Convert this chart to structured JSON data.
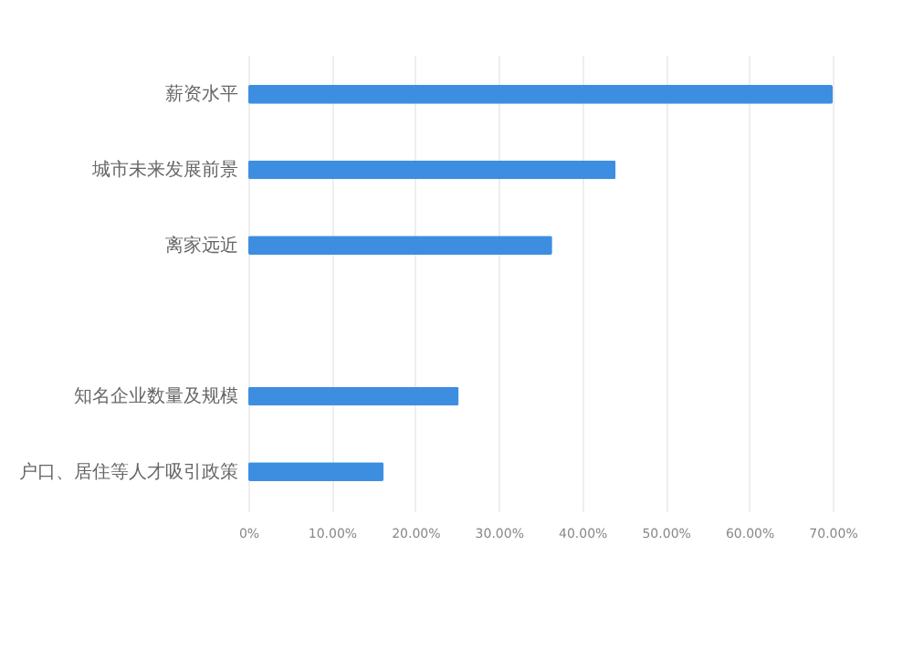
{
  "chart_data": {
    "type": "bar",
    "orientation": "horizontal",
    "categories": [
      "薪资水平",
      "城市未来发展前景",
      "离家远近",
      null,
      "知名企业数量及规模",
      "户口、居住等人才吸引政策"
    ],
    "values": [
      70,
      44,
      36.4,
      null,
      25.2,
      16.2
    ],
    "color": "#3d8ee0",
    "xlim": [
      0,
      70
    ],
    "xticks": [
      {
        "value": 0,
        "label": "0%"
      },
      {
        "value": 10,
        "label": "10.00%"
      },
      {
        "value": 20,
        "label": "20.00%"
      },
      {
        "value": 30,
        "label": "30.00%"
      },
      {
        "value": 40,
        "label": "40.00%"
      },
      {
        "value": 50,
        "label": "50.00%"
      },
      {
        "value": 60,
        "label": "60.00%"
      },
      {
        "value": 70,
        "label": "70.00%"
      }
    ],
    "grid": "x"
  }
}
